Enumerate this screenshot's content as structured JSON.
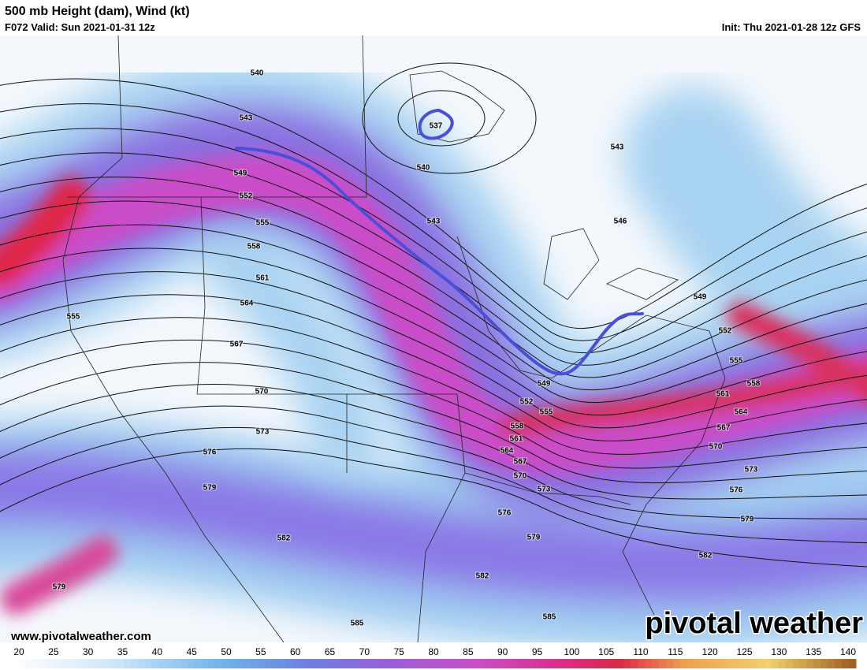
{
  "header": {
    "title": "500 mb Height (dam), Wind (kt)",
    "valid": "F072 Valid: Sun 2021-01-31 12z",
    "init": "Init: Thu 2021-01-28 12z GFS"
  },
  "contour_labels": [
    "540",
    "543",
    "549",
    "552",
    "555",
    "558",
    "561",
    "564",
    "567",
    "570",
    "573",
    "576",
    "579",
    "582",
    "585",
    "537",
    "540",
    "543",
    "543",
    "546",
    "549",
    "552",
    "555",
    "558",
    "561",
    "564",
    "567",
    "570",
    "573",
    "576",
    "579",
    "582",
    "585",
    "582",
    "579",
    "576",
    "573",
    "570",
    "567",
    "564",
    "561",
    "558",
    "555",
    "552",
    "549",
    "555",
    "579"
  ],
  "footer": {
    "website": "www.pivotalweather.com",
    "brand": "pivotal weather"
  },
  "colorbar": {
    "ticks": [
      20,
      25,
      30,
      35,
      40,
      45,
      50,
      55,
      60,
      65,
      70,
      75,
      80,
      85,
      90,
      95,
      100,
      105,
      110,
      115,
      120,
      125,
      130,
      135,
      140
    ]
  }
}
